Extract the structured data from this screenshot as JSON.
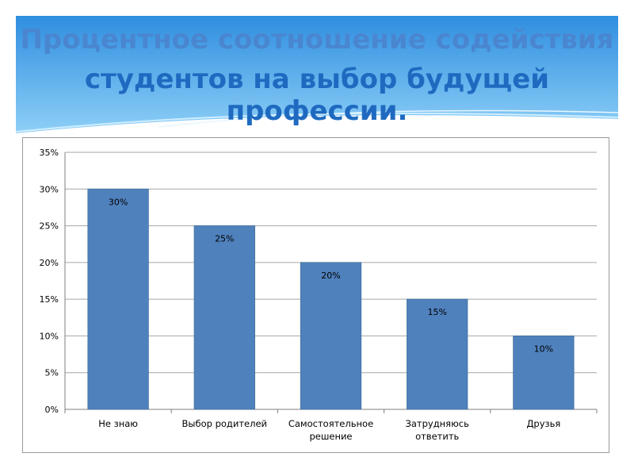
{
  "slide": {
    "title_line1": "Процентное соотношение содействия",
    "title_line2": "студентов на выбор будущей профессии."
  },
  "colors": {
    "bar": "#4f81bd",
    "bar_edge": "#41719c",
    "grid": "#a6a6a6",
    "sky_top": "#2f8ee0",
    "sky_bottom": "#8fd0f7"
  },
  "chart_data": {
    "type": "bar",
    "categories": [
      "Не знаю",
      "Выбор родителей",
      "Самостоятельное решение",
      "Затрудняюсь ответить",
      "Друзья"
    ],
    "category_lines": [
      [
        "Не знаю"
      ],
      [
        "Выбор родителей"
      ],
      [
        "Самостоятельное",
        "решение"
      ],
      [
        "Затрудняюсь",
        "ответить"
      ],
      [
        "Друзья"
      ]
    ],
    "values": [
      30,
      25,
      20,
      15,
      10
    ],
    "data_labels": [
      "30%",
      "25%",
      "20%",
      "15%",
      "10%"
    ],
    "y_ticks": [
      0,
      5,
      10,
      15,
      20,
      25,
      30,
      35
    ],
    "y_tick_labels": [
      "0%",
      "5%",
      "10%",
      "15%",
      "20%",
      "25%",
      "30%",
      "35%"
    ],
    "ylim": [
      0,
      35
    ],
    "title": "",
    "xlabel": "",
    "ylabel": "",
    "grid": true,
    "legend": "none"
  }
}
